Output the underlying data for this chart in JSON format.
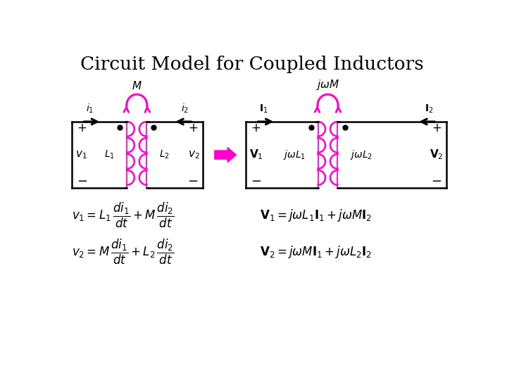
{
  "title": "Circuit Model for Coupled Inductors",
  "bg_color": "#ffffff",
  "title_color": "#000000",
  "circuit_color": "#000000",
  "mutual_color": "#ff00cc",
  "inductor_color": "#ff00cc",
  "dot_color": "#000000",
  "wire_color": "#000000",
  "eq_color": "#000000"
}
